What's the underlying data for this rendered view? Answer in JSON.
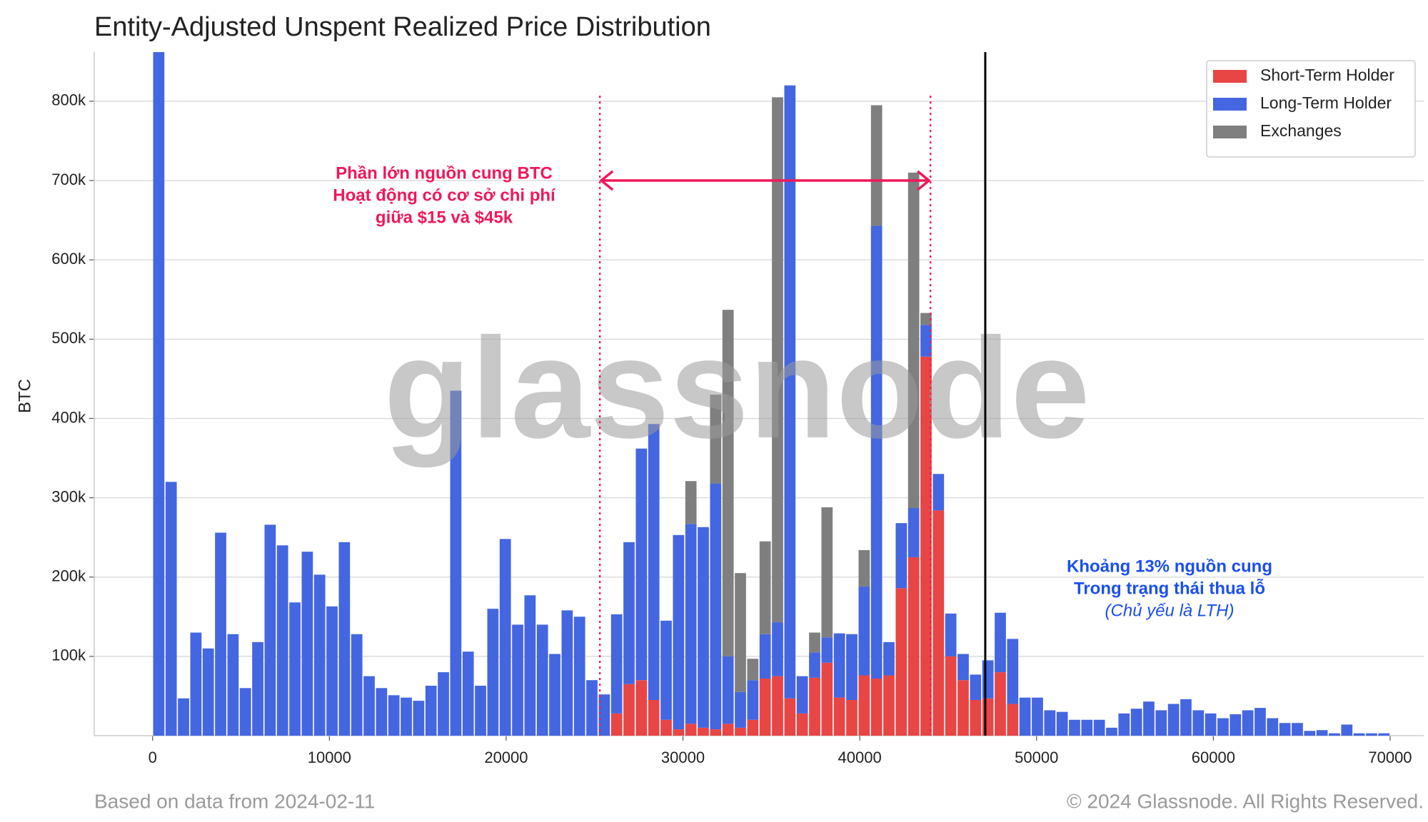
{
  "chart_data": {
    "type": "stacked_histogram",
    "title": "Entity-Adjusted Unspent Realized Price Distribution",
    "ylabel": "BTC",
    "bins": [
      0,
      700,
      1400,
      2100,
      2800,
      3500,
      4200,
      4900,
      5600,
      6300,
      7000,
      7700,
      8400,
      9100,
      9800,
      10500,
      11200,
      11900,
      12600,
      13300,
      14000,
      14700,
      15400,
      16100,
      16800,
      17500,
      18200,
      18900,
      19600,
      20300,
      21000,
      21700,
      22400,
      23100,
      23800,
      24500,
      25200,
      25900,
      26600,
      27300,
      28000,
      28700,
      29400,
      30100,
      30800,
      31500,
      32200,
      32900,
      33600,
      34300,
      35000,
      35700,
      36400,
      37100,
      37800,
      38500,
      39200,
      39900,
      40600,
      41300,
      42000,
      42700,
      43400,
      44100,
      44800,
      45500,
      46200,
      46900,
      47600,
      48300,
      49000,
      49700,
      50400,
      51100,
      51800,
      52500,
      53200,
      53900,
      54600,
      55300,
      56000,
      56700,
      57400,
      58100,
      58800,
      59500,
      60200,
      60900,
      61600,
      62300,
      63000,
      63700,
      64400,
      65100,
      65800,
      66500,
      67200,
      67900,
      68600,
      69300,
      70000
    ],
    "series": [
      {
        "name": "Short-Term Holder",
        "color": "#e84545",
        "values": [
          0,
          0,
          0,
          0,
          0,
          0,
          0,
          0,
          0,
          0,
          0,
          0,
          0,
          0,
          0,
          0,
          0,
          0,
          0,
          0,
          0,
          0,
          0,
          0,
          0,
          0,
          0,
          0,
          0,
          0,
          0,
          0,
          0,
          0,
          0,
          0,
          0,
          28000,
          65000,
          70000,
          45000,
          20000,
          8000,
          15000,
          10000,
          8000,
          15000,
          10000,
          20000,
          72000,
          75000,
          47000,
          28000,
          73000,
          92000,
          48000,
          45000,
          76000,
          72000,
          76000,
          186000,
          225000,
          478000,
          284000,
          100000,
          70000,
          45000,
          47000,
          80000,
          40000,
          0,
          0,
          0,
          0,
          0,
          0,
          0,
          0,
          0,
          0,
          0,
          0,
          0,
          0,
          0,
          0,
          0,
          0,
          0,
          0,
          0,
          0,
          0,
          0,
          0,
          0,
          0,
          0,
          0,
          0
        ]
      },
      {
        "name": "Long-Term Holder",
        "color": "#4466e0",
        "values": [
          900000,
          320000,
          47000,
          130000,
          110000,
          256000,
          128000,
          60000,
          118000,
          266000,
          240000,
          168000,
          232000,
          203000,
          163000,
          244000,
          128000,
          75000,
          60000,
          51000,
          48000,
          44000,
          63000,
          80000,
          435000,
          106000,
          63000,
          160000,
          248000,
          140000,
          177000,
          140000,
          103000,
          158000,
          150000,
          70000,
          52000,
          125000,
          179000,
          292000,
          348000,
          125000,
          245000,
          252000,
          253000,
          310000,
          85000,
          45000,
          50000,
          56000,
          68000,
          773000,
          47000,
          32000,
          32000,
          81000,
          83000,
          112000,
          571000,
          42000,
          82000,
          62000,
          40000,
          46000,
          54000,
          33000,
          32000,
          48000,
          75000,
          82000,
          48000,
          48000,
          32000,
          30000,
          20000,
          20000,
          20000,
          10000,
          28000,
          34000,
          43000,
          32000,
          40000,
          46000,
          32000,
          28000,
          22000,
          27000,
          32000,
          35000,
          22000,
          16000,
          16000,
          6000,
          7000,
          3000,
          14000,
          3000,
          3000,
          3000
        ]
      },
      {
        "name": "Exchanges",
        "color": "#7f7f7f",
        "values": [
          0,
          0,
          0,
          0,
          0,
          0,
          0,
          0,
          0,
          0,
          0,
          0,
          0,
          0,
          0,
          0,
          0,
          0,
          0,
          0,
          0,
          0,
          0,
          0,
          0,
          0,
          0,
          0,
          0,
          0,
          0,
          0,
          0,
          0,
          0,
          0,
          0,
          0,
          0,
          0,
          0,
          0,
          0,
          54000,
          0,
          112000,
          437000,
          150000,
          27000,
          117000,
          662000,
          0,
          0,
          25000,
          164000,
          0,
          0,
          46000,
          152000,
          0,
          0,
          423000,
          15000,
          0,
          0,
          0,
          0,
          0,
          0,
          0,
          0,
          0,
          0,
          0,
          0,
          0,
          0,
          0,
          0,
          0,
          0,
          0,
          0,
          0,
          0,
          0,
          0,
          0,
          0,
          0,
          0,
          0,
          0,
          0,
          0,
          0,
          0,
          0,
          0,
          0
        ]
      }
    ],
    "xlim": [
      -3300,
      71900
    ],
    "ylim": [
      0,
      862000
    ],
    "xticks": [
      0,
      10000,
      20000,
      30000,
      40000,
      50000,
      60000,
      70000
    ],
    "yticks": [
      {
        "value": 100000,
        "label": "100k"
      },
      {
        "value": 200000,
        "label": "200k"
      },
      {
        "value": 300000,
        "label": "300k"
      },
      {
        "value": 400000,
        "label": "400k"
      },
      {
        "value": 500000,
        "label": "500k"
      },
      {
        "value": 600000,
        "label": "600k"
      },
      {
        "value": 700000,
        "label": "700k"
      },
      {
        "value": 800000,
        "label": "800k"
      }
    ],
    "grid": true,
    "legend": "upper right",
    "reference_lines": [
      {
        "x": 25300,
        "ymax": 807000,
        "color": "#f0185a",
        "style": "dotted"
      },
      {
        "x": 44000,
        "ymax": 807000,
        "color": "#f0185a",
        "style": "dotted"
      },
      {
        "x": 47100,
        "color": "#000000",
        "style": "solid"
      }
    ],
    "arrow": {
      "from": 25300,
      "to": 44000,
      "y": 700000,
      "color": "#f0185a"
    },
    "annotations": [
      {
        "color": "#f0185a",
        "lines": [
          "Phần lớn nguồn cung BTC",
          "Hoạt động có cơ sở chi phí",
          "giữa $15 và $45k"
        ]
      },
      {
        "color": "#1a4ff0",
        "lines": [
          "Khoảng 13% nguồn cung",
          "Trong trạng thái thua lỗ"
        ],
        "note": "(Chủ yếu là LTH)"
      }
    ],
    "watermark": "glassnode",
    "footer_left": "Based on data from 2024-02-11",
    "footer_right": "© 2024 Glassnode. All Rights Reserved."
  }
}
